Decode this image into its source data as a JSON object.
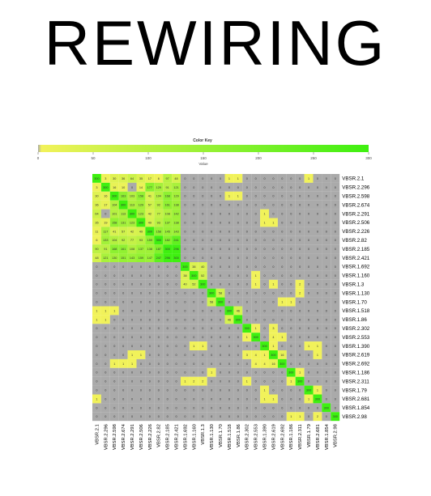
{
  "page": {
    "title": "REWIRING"
  },
  "chart_data": {
    "type": "heatmap",
    "title": "REWIRING",
    "color_key": {
      "title": "Color Key",
      "xlabel": "Value",
      "ticks": [
        "0",
        "50",
        "100",
        "150",
        "200",
        "250",
        "300"
      ],
      "range": [
        0,
        300
      ],
      "colors": {
        "zero": "#aaaaaa",
        "low": "#f2f25a",
        "high": "#3ef010"
      }
    },
    "rows": [
      "VBSR.2.1",
      "VBSR.2.296",
      "VBSR.2.598",
      "VBSR.2.674",
      "VBSR.2.291",
      "VBSR.2.506",
      "VBSR.2.226",
      "VBSR.2.82",
      "VBSR.2.185",
      "VBSR.2.421",
      "VBSR.1.692",
      "VBSR.1.160",
      "VBSR.1.3",
      "VBSR.1.130",
      "VBSR.1.70",
      "VBSR.1.518",
      "VBSR.1.86",
      "VBSR.2.302",
      "VBSR.2.553",
      "VBSR.1.390",
      "VBSR.2.619",
      "VBSR.2.692",
      "VBSR.1.186",
      "VBSR.2.311",
      "VBSR.1.79",
      "VBSR.2.681",
      "VBSR.1.854",
      "VBSR.2.98"
    ],
    "columns": [
      "VBSR.2.1",
      "VBSR.2.296",
      "VBSR.2.598",
      "VBSR.2.674",
      "VBSR.2.291",
      "VBSR.2.506",
      "VBSR.2.226",
      "VBSR.2.82",
      "VBSR.2.185",
      "VBSR.2.421",
      "VBSR.1.692",
      "VBSR.1.160",
      "VBSR.1.3",
      "VBSR.1.130",
      "VBSR.1.70",
      "VBSR.1.518",
      "VBSR.1.86",
      "VBSR.2.302",
      "VBSR.2.553",
      "VBSR.1.390",
      "VBSR.2.619",
      "VBSR.2.692",
      "VBSR.1.186",
      "VBSR.2.311",
      "VBSR.1.79",
      "VBSR.2.681",
      "VBSR.1.854",
      "VBSR.2.98"
    ],
    "values": [
      [
        300,
        3,
        30,
        36,
        64,
        35,
        17,
        6,
        97,
        48,
        0,
        0,
        0,
        0,
        0,
        1,
        1,
        0,
        0,
        0,
        0,
        0,
        0,
        0,
        1,
        0,
        0,
        0
      ],
      [
        3,
        300,
        16,
        10,
        0,
        14,
        177,
        129,
        91,
        121,
        0,
        0,
        0,
        0,
        0,
        0,
        0,
        0,
        0,
        0,
        0,
        0,
        0,
        0,
        0,
        0,
        0,
        0
      ],
      [
        30,
        16,
        300,
        163,
        103,
        158,
        41,
        104,
        168,
        129,
        0,
        0,
        0,
        0,
        0,
        1,
        1,
        0,
        0,
        0,
        0,
        0,
        0,
        0,
        0,
        0,
        0,
        0
      ],
      [
        36,
        17,
        104,
        300,
        113,
        129,
        57,
        92,
        161,
        138,
        0,
        0,
        0,
        0,
        0,
        0,
        0,
        0,
        0,
        0,
        0,
        0,
        0,
        0,
        0,
        0,
        0,
        0
      ],
      [
        64,
        0,
        101,
        113,
        300,
        123,
        42,
        77,
        108,
        142,
        0,
        0,
        0,
        0,
        0,
        0,
        0,
        0,
        0,
        1,
        0,
        0,
        0,
        0,
        0,
        0,
        0,
        0
      ],
      [
        35,
        19,
        158,
        131,
        123,
        300,
        49,
        93,
        137,
        138,
        0,
        0,
        0,
        0,
        0,
        0,
        0,
        0,
        0,
        1,
        1,
        0,
        0,
        0,
        0,
        0,
        0,
        0
      ],
      [
        11,
        117,
        41,
        57,
        42,
        49,
        300,
        158,
        145,
        143,
        0,
        0,
        0,
        0,
        0,
        0,
        0,
        0,
        0,
        0,
        0,
        0,
        0,
        0,
        0,
        0,
        0,
        0
      ],
      [
        6,
        133,
        104,
        92,
        77,
        93,
        159,
        300,
        182,
        241,
        0,
        0,
        0,
        0,
        0,
        0,
        0,
        0,
        0,
        0,
        0,
        0,
        0,
        0,
        0,
        0,
        0,
        0
      ],
      [
        90,
        91,
        168,
        161,
        108,
        137,
        138,
        187,
        300,
        296,
        0,
        0,
        0,
        0,
        0,
        0,
        0,
        0,
        0,
        0,
        0,
        0,
        0,
        0,
        0,
        0,
        0,
        0
      ],
      [
        48,
        121,
        130,
        151,
        143,
        159,
        147,
        247,
        296,
        300,
        0,
        0,
        0,
        0,
        0,
        0,
        0,
        0,
        0,
        0,
        0,
        0,
        0,
        0,
        0,
        0,
        0,
        0
      ],
      [
        0,
        0,
        0,
        0,
        0,
        0,
        0,
        0,
        0,
        0,
        300,
        38,
        40,
        0,
        0,
        0,
        0,
        0,
        0,
        0,
        0,
        0,
        0,
        0,
        0,
        0,
        0,
        0
      ],
      [
        0,
        0,
        0,
        0,
        0,
        0,
        0,
        0,
        0,
        0,
        38,
        300,
        52,
        0,
        0,
        0,
        0,
        0,
        1,
        0,
        0,
        0,
        0,
        0,
        0,
        0,
        0,
        0
      ],
      [
        0,
        0,
        0,
        0,
        0,
        0,
        0,
        0,
        0,
        0,
        40,
        52,
        300,
        0,
        0,
        0,
        0,
        0,
        1,
        0,
        1,
        0,
        0,
        2,
        0,
        0,
        0,
        0
      ],
      [
        0,
        0,
        0,
        0,
        0,
        0,
        0,
        0,
        0,
        0,
        0,
        0,
        0,
        300,
        58,
        0,
        0,
        0,
        0,
        0,
        0,
        0,
        0,
        2,
        0,
        0,
        0,
        0
      ],
      [
        0,
        0,
        0,
        0,
        0,
        0,
        0,
        0,
        0,
        0,
        0,
        0,
        0,
        58,
        300,
        0,
        0,
        0,
        0,
        0,
        0,
        1,
        1,
        0,
        0,
        0,
        0,
        0
      ],
      [
        1,
        1,
        1,
        0,
        0,
        0,
        0,
        0,
        0,
        0,
        0,
        0,
        0,
        0,
        0,
        300,
        46,
        0,
        0,
        0,
        0,
        0,
        0,
        0,
        0,
        0,
        0,
        0
      ],
      [
        1,
        1,
        0,
        0,
        0,
        0,
        0,
        0,
        0,
        0,
        0,
        0,
        0,
        0,
        0,
        46,
        300,
        0,
        0,
        0,
        0,
        0,
        0,
        0,
        0,
        0,
        0,
        0
      ],
      [
        0,
        0,
        0,
        0,
        0,
        0,
        0,
        0,
        0,
        0,
        0,
        0,
        0,
        0,
        0,
        0,
        0,
        300,
        1,
        0,
        3,
        0,
        0,
        0,
        0,
        0,
        0,
        0
      ],
      [
        0,
        0,
        0,
        0,
        0,
        0,
        0,
        0,
        0,
        0,
        0,
        0,
        0,
        0,
        0,
        0,
        0,
        1,
        300,
        0,
        4,
        1,
        0,
        0,
        0,
        0,
        0,
        0
      ],
      [
        0,
        0,
        0,
        0,
        0,
        0,
        0,
        0,
        0,
        0,
        0,
        1,
        1,
        0,
        0,
        0,
        0,
        0,
        0,
        300,
        1,
        0,
        0,
        0,
        1,
        1,
        0,
        0
      ],
      [
        0,
        0,
        0,
        0,
        1,
        1,
        0,
        0,
        0,
        0,
        0,
        0,
        0,
        0,
        0,
        0,
        0,
        3,
        4,
        1,
        300,
        16,
        0,
        0,
        0,
        1,
        0,
        0
      ],
      [
        0,
        0,
        1,
        1,
        1,
        0,
        0,
        0,
        0,
        0,
        0,
        0,
        0,
        0,
        0,
        0,
        0,
        0,
        4,
        4,
        16,
        300,
        0,
        0,
        0,
        0,
        0,
        0
      ],
      [
        0,
        0,
        0,
        0,
        0,
        0,
        0,
        0,
        0,
        0,
        0,
        0,
        0,
        1,
        0,
        0,
        0,
        0,
        0,
        0,
        0,
        0,
        300,
        1,
        0,
        0,
        0,
        0
      ],
      [
        0,
        0,
        0,
        0,
        0,
        0,
        0,
        0,
        0,
        0,
        1,
        2,
        2,
        0,
        0,
        0,
        0,
        1,
        0,
        0,
        0,
        0,
        1,
        300,
        0,
        0,
        0,
        0
      ],
      [
        0,
        0,
        0,
        0,
        0,
        0,
        0,
        0,
        0,
        0,
        0,
        0,
        0,
        0,
        0,
        0,
        0,
        0,
        0,
        1,
        0,
        0,
        0,
        0,
        300,
        1,
        0,
        0
      ],
      [
        1,
        0,
        0,
        0,
        0,
        0,
        0,
        0,
        0,
        0,
        0,
        0,
        0,
        0,
        0,
        0,
        0,
        0,
        0,
        1,
        1,
        0,
        0,
        0,
        1,
        300,
        0,
        0
      ],
      [
        0,
        0,
        0,
        0,
        0,
        0,
        0,
        0,
        0,
        0,
        0,
        0,
        0,
        0,
        0,
        0,
        0,
        0,
        0,
        0,
        0,
        0,
        0,
        0,
        0,
        0,
        300,
        0
      ],
      [
        0,
        0,
        0,
        0,
        0,
        0,
        0,
        0,
        0,
        0,
        0,
        0,
        0,
        0,
        0,
        0,
        0,
        0,
        0,
        0,
        0,
        0,
        1,
        1,
        0,
        2,
        0,
        300
      ]
    ]
  }
}
